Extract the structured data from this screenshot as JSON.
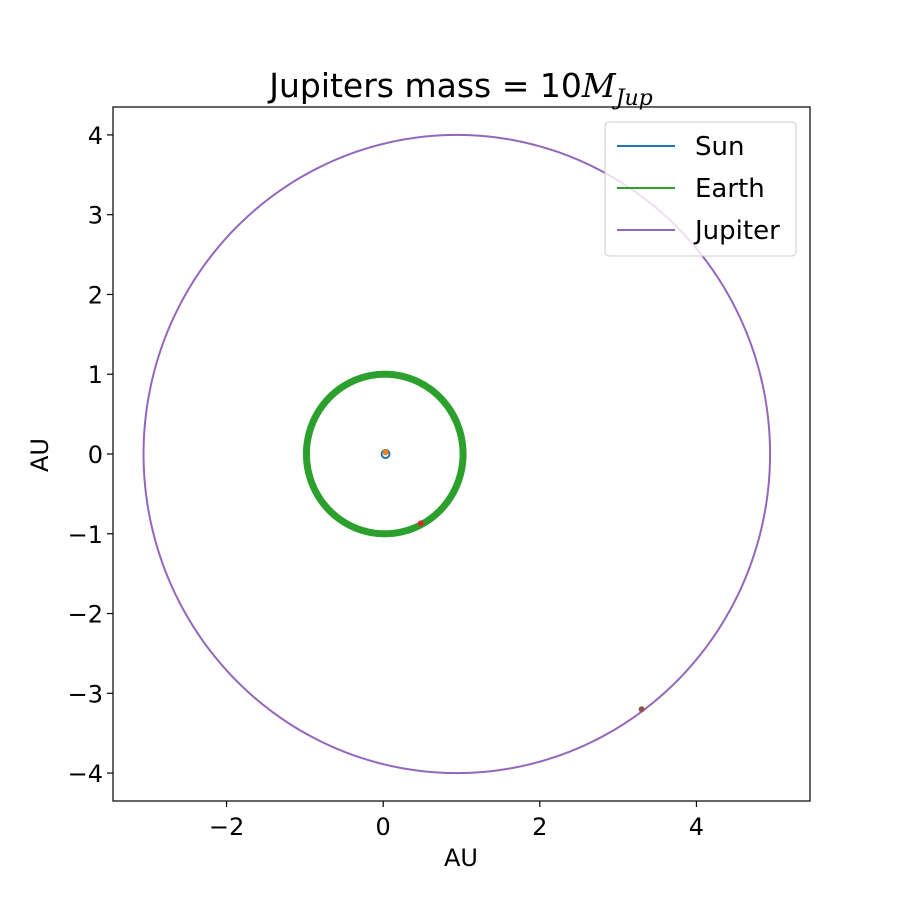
{
  "chart_data": {
    "type": "line",
    "title": {
      "prefix": "Jupiters mass",
      "equals": " = ",
      "number": "10",
      "symbol": "M",
      "subscript": "Jup"
    },
    "xlabel": "AU",
    "ylabel": "AU",
    "xlim": [
      -3.45,
      5.45
    ],
    "ylim": [
      -4.35,
      4.35
    ],
    "xticks": [
      -2,
      0,
      2,
      4
    ],
    "yticks": [
      -4,
      -3,
      -2,
      -1,
      0,
      1,
      2,
      3,
      4
    ],
    "xtick_labels": [
      "−2",
      "0",
      "2",
      "4"
    ],
    "ytick_labels": [
      "−4",
      "−3",
      "−2",
      "−1",
      "0",
      "1",
      "2",
      "3",
      "4"
    ],
    "grid": false,
    "legend_position": "top-right",
    "series": [
      {
        "name": "Sun",
        "color": "#1f77b4",
        "shape": "orbit",
        "center": [
          0.03,
          0.0
        ],
        "radius": 0.05,
        "samples": 64
      },
      {
        "name": "Earth",
        "color": "#2ca02c",
        "shape": "orbit",
        "center": [
          0.02,
          0.0
        ],
        "radius": 1.0,
        "samples": 240
      },
      {
        "name": "Jupiter",
        "color": "#9467bd",
        "shape": "orbit",
        "center": [
          0.94,
          0.0
        ],
        "radius": 4.0,
        "samples": 480
      }
    ],
    "end_markers": [
      {
        "x": 0.03,
        "y": 0.02,
        "color": "#ff7f0e"
      },
      {
        "x": 0.48,
        "y": -0.87,
        "color": "#d62728"
      },
      {
        "x": 3.3,
        "y": -3.2,
        "color": "#8c564b"
      }
    ]
  }
}
